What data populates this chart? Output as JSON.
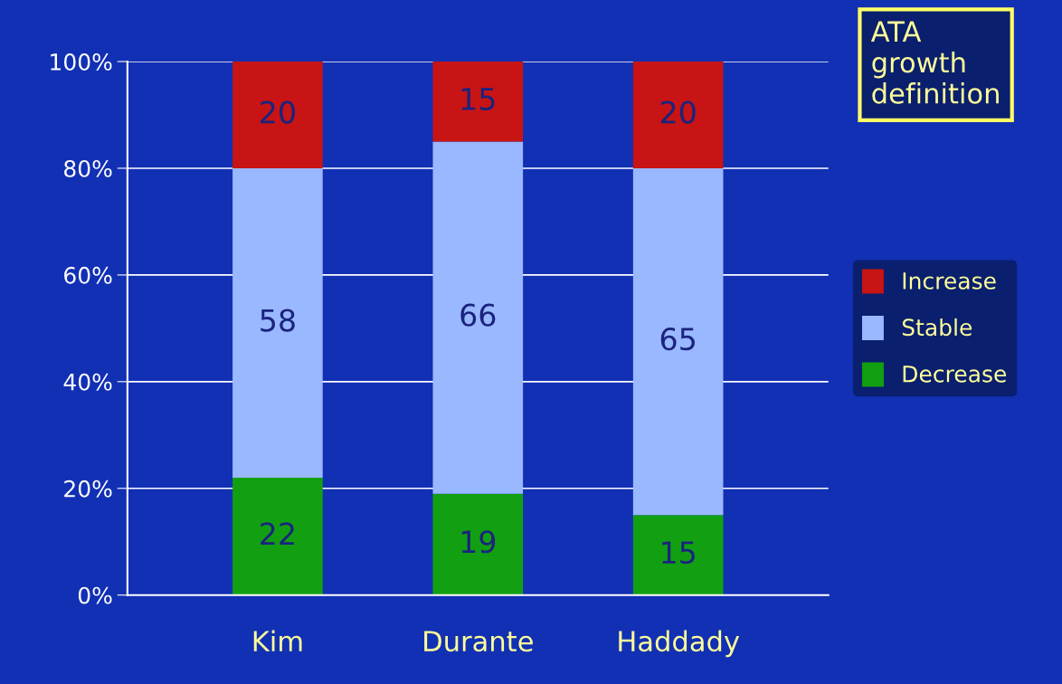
{
  "chart_data": {
    "type": "bar",
    "stacked": true,
    "categories": [
      "Kim",
      "Durante",
      "Haddady"
    ],
    "series": [
      {
        "name": "Decrease",
        "color": "#12a012",
        "values": [
          22,
          19,
          15
        ]
      },
      {
        "name": "Stable",
        "color": "#99b8ff",
        "values": [
          58,
          66,
          65
        ]
      },
      {
        "name": "Increase",
        "color": "#c81414",
        "values": [
          20,
          15,
          20
        ]
      }
    ],
    "ylim": [
      0,
      100
    ],
    "yticks": [
      {
        "value": 0,
        "label": "0%"
      },
      {
        "value": 20,
        "label": "20%"
      },
      {
        "value": 40,
        "label": "40%"
      },
      {
        "value": 60,
        "label": "60%"
      },
      {
        "value": 80,
        "label": "80%"
      },
      {
        "value": 100,
        "label": "100%"
      }
    ],
    "grid": "y",
    "legend": "right",
    "data_labels": true,
    "annotations": [
      "ATA\ngrowth\ndefinition"
    ]
  }
}
